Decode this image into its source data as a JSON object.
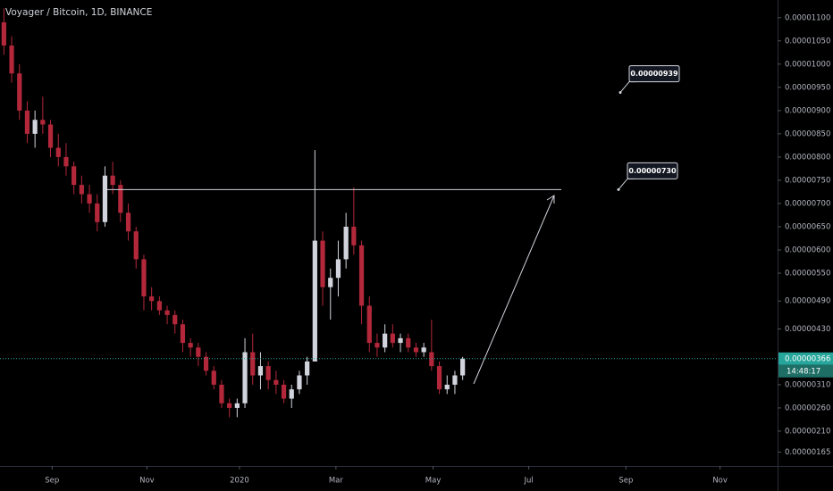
{
  "chart_data": {
    "type": "candlestick",
    "title": "Voyager / Bitcoin, 1D, BINANCE",
    "up_color": "#d1d4dc",
    "down_color": "#b2283a",
    "ohlc": [
      [
        1.09e-05,
        1.12e-05,
        1.02e-05,
        1.04e-05
      ],
      [
        1.04e-05,
        1.06e-05,
        9.6e-06,
        9.8e-06
      ],
      [
        9.8e-06,
        1e-05,
        8.8e-06,
        9e-06
      ],
      [
        9e-06,
        9.2e-06,
        8.3e-06,
        8.5e-06
      ],
      [
        8.5e-06,
        9e-06,
        8.2e-06,
        8.8e-06
      ],
      [
        8.8e-06,
        9.3e-06,
        8.5e-06,
        8.7e-06
      ],
      [
        8.7e-06,
        8.8e-06,
        8e-06,
        8.2e-06
      ],
      [
        8.2e-06,
        8.5e-06,
        7.8e-06,
        8e-06
      ],
      [
        8e-06,
        8.3e-06,
        7.6e-06,
        7.8e-06
      ],
      [
        7.8e-06,
        7.9e-06,
        7.2e-06,
        7.4e-06
      ],
      [
        7.4e-06,
        7.6e-06,
        7e-06,
        7.2e-06
      ],
      [
        7.2e-06,
        7.4e-06,
        6.8e-06,
        7e-06
      ],
      [
        7e-06,
        7.2e-06,
        6.4e-06,
        6.6e-06
      ],
      [
        6.6e-06,
        7.8e-06,
        6.5e-06,
        7.6e-06
      ],
      [
        7.6e-06,
        7.9e-06,
        7.2e-06,
        7.4e-06
      ],
      [
        7.4e-06,
        7.5e-06,
        6.6e-06,
        6.8e-06
      ],
      [
        6.8e-06,
        7e-06,
        6.2e-06,
        6.4e-06
      ],
      [
        6.4e-06,
        6.5e-06,
        5.6e-06,
        5.8e-06
      ],
      [
        5.8e-06,
        5.9e-06,
        4.7e-06,
        5e-06
      ],
      [
        5e-06,
        5.2e-06,
        4.7e-06,
        4.9e-06
      ],
      [
        4.9e-06,
        5e-06,
        4.6e-06,
        4.7e-06
      ],
      [
        4.7e-06,
        4.8e-06,
        4.4e-06,
        4.6e-06
      ],
      [
        4.6e-06,
        4.7e-06,
        4.2e-06,
        4.4e-06
      ],
      [
        4.4e-06,
        4.5e-06,
        3.8e-06,
        4e-06
      ],
      [
        4e-06,
        4.1e-06,
        3.7e-06,
        3.9e-06
      ],
      [
        3.9e-06,
        4e-06,
        3.5e-06,
        3.7e-06
      ],
      [
        3.7e-06,
        3.8e-06,
        3.3e-06,
        3.4e-06
      ],
      [
        3.4e-06,
        3.5e-06,
        3e-06,
        3.1e-06
      ],
      [
        3.1e-06,
        3.2e-06,
        2.6e-06,
        2.7e-06
      ],
      [
        2.7e-06,
        2.8e-06,
        2.4e-06,
        2.6e-06
      ],
      [
        2.6e-06,
        2.8e-06,
        2.4e-06,
        2.7e-06
      ],
      [
        2.7e-06,
        4.1e-06,
        2.6e-06,
        3.8e-06
      ],
      [
        3.8e-06,
        4.2e-06,
        3.1e-06,
        3.3e-06
      ],
      [
        3.3e-06,
        3.8e-06,
        3e-06,
        3.5e-06
      ],
      [
        3.5e-06,
        3.6e-06,
        3e-06,
        3.2e-06
      ],
      [
        3.2e-06,
        3.4e-06,
        2.9e-06,
        3.1e-06
      ],
      [
        3.1e-06,
        3.2e-06,
        2.7e-06,
        2.8e-06
      ],
      [
        2.8e-06,
        3.1e-06,
        2.6e-06,
        3e-06
      ],
      [
        3e-06,
        3.4e-06,
        2.9e-06,
        3.3e-06
      ],
      [
        3.3e-06,
        3.7e-06,
        3.1e-06,
        3.6e-06
      ],
      [
        3.6e-06,
        8.15e-06,
        3.6e-06,
        6.2e-06
      ],
      [
        6.2e-06,
        6.4e-06,
        4.8e-06,
        5.2e-06
      ],
      [
        5.2e-06,
        5.6e-06,
        4.5e-06,
        5.4e-06
      ],
      [
        5.4e-06,
        6.2e-06,
        5e-06,
        5.8e-06
      ],
      [
        5.8e-06,
        6.8e-06,
        5.6e-06,
        6.5e-06
      ],
      [
        6.5e-06,
        7.35e-06,
        5.9e-06,
        6.1e-06
      ],
      [
        6.1e-06,
        6.2e-06,
        4.4e-06,
        4.8e-06
      ],
      [
        4.8e-06,
        5e-06,
        3.8e-06,
        4e-06
      ],
      [
        4e-06,
        4.2e-06,
        3.7e-06,
        3.9e-06
      ],
      [
        3.9e-06,
        4.4e-06,
        3.8e-06,
        4.2e-06
      ],
      [
        4.2e-06,
        4.4e-06,
        3.9e-06,
        4e-06
      ],
      [
        4e-06,
        4.2e-06,
        3.8e-06,
        4.1e-06
      ],
      [
        4.1e-06,
        4.2e-06,
        3.8e-06,
        3.9e-06
      ],
      [
        3.9e-06,
        4e-06,
        3.7e-06,
        3.8e-06
      ],
      [
        3.8e-06,
        4e-06,
        3.7e-06,
        3.9e-06
      ],
      [
        3.8e-06,
        4.5e-06,
        3.4e-06,
        3.5e-06
      ],
      [
        3.5e-06,
        3.6e-06,
        2.9e-06,
        3e-06
      ],
      [
        3e-06,
        3.3e-06,
        2.9e-06,
        3.1e-06
      ],
      [
        3.1e-06,
        3.4e-06,
        2.9e-06,
        3.3e-06
      ],
      [
        3.3e-06,
        3.7e-06,
        3.2e-06,
        3.66e-06
      ]
    ],
    "xlim": [
      -0.5,
      99.5
    ],
    "xticks": [
      {
        "value": 6.2,
        "label": "Sep"
      },
      {
        "value": 18.4,
        "label": "Nov"
      },
      {
        "value": 30.3,
        "label": "2020"
      },
      {
        "value": 42.7,
        "label": "Mar"
      },
      {
        "value": 55.2,
        "label": "May"
      },
      {
        "value": 67.5,
        "label": "Jul"
      },
      {
        "value": 80.0,
        "label": "Sep"
      },
      {
        "value": 92.1,
        "label": "Nov"
      }
    ],
    "ylim": [
      1.35e-06,
      1.138e-05
    ],
    "yticks": [
      {
        "value": 1.1e-05,
        "label": "0.00001100"
      },
      {
        "value": 1.05e-05,
        "label": "0.00001050"
      },
      {
        "value": 1e-05,
        "label": "0.00001000"
      },
      {
        "value": 9.5e-06,
        "label": "0.00000950"
      },
      {
        "value": 9e-06,
        "label": "0.00000900"
      },
      {
        "value": 8.5e-06,
        "label": "0.00000850"
      },
      {
        "value": 8e-06,
        "label": "0.00000800"
      },
      {
        "value": 7.5e-06,
        "label": "0.00000750"
      },
      {
        "value": 7e-06,
        "label": "0.00000700"
      },
      {
        "value": 6.5e-06,
        "label": "0.00000650"
      },
      {
        "value": 6e-06,
        "label": "0.00000600"
      },
      {
        "value": 5.5e-06,
        "label": "0.00000550"
      },
      {
        "value": 4.9e-06,
        "label": "0.00000490"
      },
      {
        "value": 4.3e-06,
        "label": "0.00000430"
      },
      {
        "value": 3.1e-06,
        "label": "0.00000310"
      },
      {
        "value": 2.6e-06,
        "label": "0.00000260"
      },
      {
        "value": 2.1e-06,
        "label": "0.00000210"
      },
      {
        "value": 1.65e-06,
        "label": "0.00000165"
      }
    ],
    "last_price": {
      "value": 3.66e-06,
      "label": "0.00000366"
    },
    "countdown": "14:48:17",
    "annotations": [
      {
        "value": 9.39e-06,
        "label": "0.00000939"
      },
      {
        "value": 7.3e-06,
        "label": "0.00000730"
      }
    ]
  }
}
